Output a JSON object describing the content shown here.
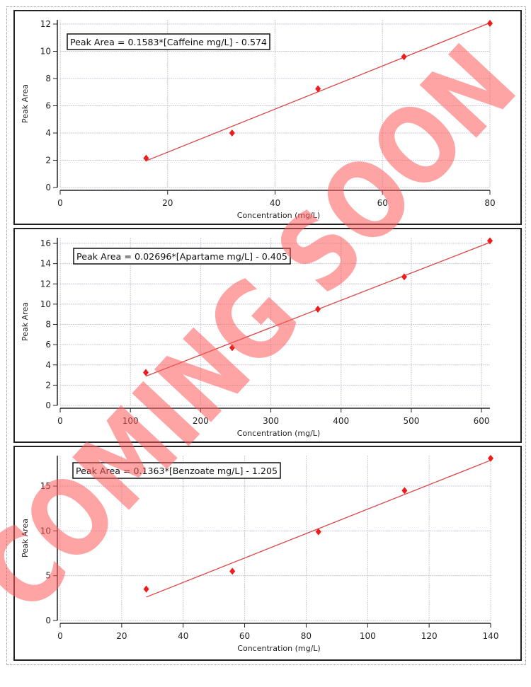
{
  "chart_data": [
    {
      "type": "scatter",
      "xlabel": "Concentration (mg/L)",
      "ylabel": "Peak Area",
      "annotation": "Peak Area = 0.1583*[Caffeine mg/L] - 0.574",
      "fit": {
        "slope": 0.1583,
        "intercept": -0.574
      },
      "x": [
        16,
        32,
        48,
        64,
        80
      ],
      "y": [
        2.15,
        4.0,
        7.25,
        9.6,
        12.05
      ],
      "xlim": [
        0,
        80
      ],
      "ylim": [
        0,
        12
      ],
      "xticks": [
        0,
        20,
        40,
        60,
        80
      ],
      "yticks": [
        0,
        2,
        4,
        6,
        8,
        10,
        12
      ],
      "grid": true,
      "marker_color": "#ee1c1c",
      "line_color": "#d94545"
    },
    {
      "type": "scatter",
      "xlabel": "Concentration (mg/L)",
      "ylabel": "Peak Area",
      "annotation": "Peak Area = 0.02696*[Apartame mg/L] - 0.405",
      "fit": {
        "slope": 0.02696,
        "intercept": -0.405
      },
      "x": [
        122,
        245,
        367,
        490,
        612
      ],
      "y": [
        3.25,
        5.7,
        9.5,
        12.7,
        16.25
      ],
      "xlim": [
        0,
        612
      ],
      "ylim": [
        0,
        16
      ],
      "xticks": [
        0,
        100,
        200,
        300,
        400,
        500,
        600
      ],
      "yticks": [
        0,
        2,
        4,
        6,
        8,
        10,
        12,
        14,
        16
      ],
      "grid": true,
      "marker_color": "#ee1c1c",
      "line_color": "#d94545"
    },
    {
      "type": "scatter",
      "xlabel": "Concentration (mg/L)",
      "ylabel": "Peak Area",
      "annotation": "Peak Area = 0.1363*[Benzoate mg/L] - 1.205",
      "fit": {
        "slope": 0.1363,
        "intercept": -1.205
      },
      "x": [
        28,
        56,
        84,
        112,
        140
      ],
      "y": [
        3.5,
        5.5,
        9.9,
        14.5,
        18.1
      ],
      "xlim": [
        0,
        140
      ],
      "ylim": [
        0,
        18
      ],
      "xticks": [
        0,
        20,
        40,
        60,
        80,
        100,
        120,
        140
      ],
      "yticks": [
        0,
        5,
        10,
        15
      ],
      "grid": true,
      "marker_color": "#ee1c1c",
      "line_color": "#d94545"
    }
  ],
  "watermark": {
    "text": "COMING SOON",
    "color": "#ff5a5a"
  }
}
